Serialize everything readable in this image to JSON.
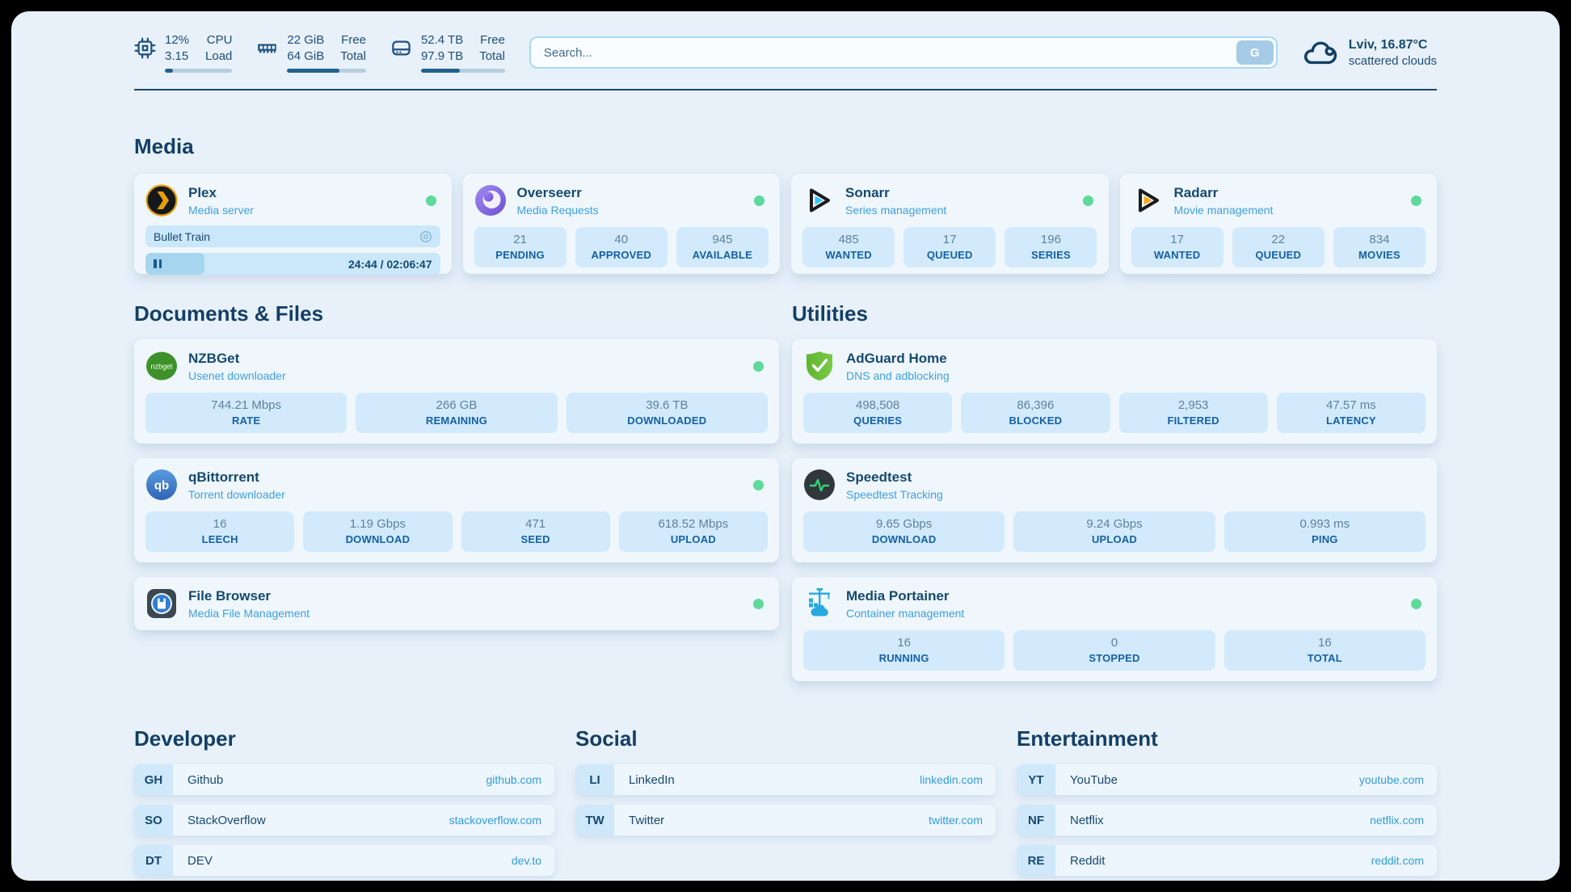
{
  "colors": {
    "status_ok": "#5fd99a",
    "link": "#2f9ce0",
    "accent": "#1d4e76"
  },
  "header": {
    "system_stats": [
      {
        "icon": "cpu-icon",
        "value_top": "12%",
        "value_bottom": "3.15",
        "label_top": "CPU",
        "label_bottom": "Load",
        "progress": 12
      },
      {
        "icon": "ram-icon",
        "value_top": "22 GiB",
        "value_bottom": "64 GiB",
        "label_top": "Free",
        "label_bottom": "Total",
        "progress": 66
      },
      {
        "icon": "disk-icon",
        "value_top": "52.4 TB",
        "value_bottom": "97.9 TB",
        "label_top": "Free",
        "label_bottom": "Total",
        "progress": 46
      }
    ],
    "search": {
      "placeholder": "Search...",
      "button_label": "G"
    },
    "weather": {
      "icon": "cloud-icon",
      "location_temp": "Lviv, 16.87°C",
      "condition": "scattered clouds"
    }
  },
  "sections": {
    "media": {
      "title": "Media",
      "plex": {
        "icon": "plex-icon",
        "name": "Plex",
        "desc": "Media server",
        "now_playing": "Bullet Train",
        "time": "24:44 / 02:06:47",
        "progress": 20
      },
      "overseerr": {
        "icon": "overseerr-icon",
        "name": "Overseerr",
        "desc": "Media Requests",
        "stats": [
          {
            "value": "21",
            "label": "PENDING"
          },
          {
            "value": "40",
            "label": "APPROVED"
          },
          {
            "value": "945",
            "label": "AVAILABLE"
          }
        ]
      },
      "sonarr": {
        "icon": "sonarr-icon",
        "name": "Sonarr",
        "desc": "Series management",
        "stats": [
          {
            "value": "485",
            "label": "WANTED"
          },
          {
            "value": "17",
            "label": "QUEUED"
          },
          {
            "value": "196",
            "label": "SERIES"
          }
        ]
      },
      "radarr": {
        "icon": "radarr-icon",
        "name": "Radarr",
        "desc": "Movie management",
        "stats": [
          {
            "value": "17",
            "label": "WANTED"
          },
          {
            "value": "22",
            "label": "QUEUED"
          },
          {
            "value": "834",
            "label": "MOVIES"
          }
        ]
      }
    },
    "documents": {
      "title": "Documents & Files",
      "nzbget": {
        "icon": "nzbget-icon",
        "icon_text": "nzbget",
        "name": "NZBGet",
        "desc": "Usenet downloader",
        "stats": [
          {
            "value": "744.21 Mbps",
            "label": "RATE"
          },
          {
            "value": "266 GB",
            "label": "REMAINING"
          },
          {
            "value": "39.6 TB",
            "label": "DOWNLOADED"
          }
        ]
      },
      "qbittorrent": {
        "icon": "qbittorrent-icon",
        "icon_text": "qb",
        "name": "qBittorrent",
        "desc": "Torrent downloader",
        "stats": [
          {
            "value": "16",
            "label": "LEECH"
          },
          {
            "value": "1.19 Gbps",
            "label": "DOWNLOAD"
          },
          {
            "value": "471",
            "label": "SEED"
          },
          {
            "value": "618.52 Mbps",
            "label": "UPLOAD"
          }
        ]
      },
      "filebrowser": {
        "icon": "filebrowser-icon",
        "name": "File Browser",
        "desc": "Media File Management"
      }
    },
    "utilities": {
      "title": "Utilities",
      "adguard": {
        "icon": "adguard-icon",
        "name": "AdGuard Home",
        "desc": "DNS and adblocking",
        "stats": [
          {
            "value": "498,508",
            "label": "QUERIES"
          },
          {
            "value": "86,396",
            "label": "BLOCKED"
          },
          {
            "value": "2,953",
            "label": "FILTERED"
          },
          {
            "value": "47.57 ms",
            "label": "LATENCY"
          }
        ]
      },
      "speedtest": {
        "icon": "speedtest-icon",
        "name": "Speedtest",
        "desc": "Speedtest Tracking",
        "stats": [
          {
            "value": "9.65 Gbps",
            "label": "DOWNLOAD"
          },
          {
            "value": "9.24 Gbps",
            "label": "UPLOAD"
          },
          {
            "value": "0.993 ms",
            "label": "PING"
          }
        ]
      },
      "portainer": {
        "icon": "portainer-icon",
        "name": "Media Portainer",
        "desc": "Container management",
        "stats": [
          {
            "value": "16",
            "label": "RUNNING"
          },
          {
            "value": "0",
            "label": "STOPPED"
          },
          {
            "value": "16",
            "label": "TOTAL"
          }
        ]
      }
    }
  },
  "links": {
    "developer": {
      "title": "Developer",
      "items": [
        {
          "abbr": "GH",
          "name": "Github",
          "url": "github.com"
        },
        {
          "abbr": "SO",
          "name": "StackOverflow",
          "url": "stackoverflow.com"
        },
        {
          "abbr": "DT",
          "name": "DEV",
          "url": "dev.to"
        }
      ]
    },
    "social": {
      "title": "Social",
      "items": [
        {
          "abbr": "LI",
          "name": "LinkedIn",
          "url": "linkedin.com"
        },
        {
          "abbr": "TW",
          "name": "Twitter",
          "url": "twitter.com"
        }
      ]
    },
    "entertainment": {
      "title": "Entertainment",
      "items": [
        {
          "abbr": "YT",
          "name": "YouTube",
          "url": "youtube.com"
        },
        {
          "abbr": "NF",
          "name": "Netflix",
          "url": "netflix.com"
        },
        {
          "abbr": "RE",
          "name": "Reddit",
          "url": "reddit.com"
        }
      ]
    }
  }
}
